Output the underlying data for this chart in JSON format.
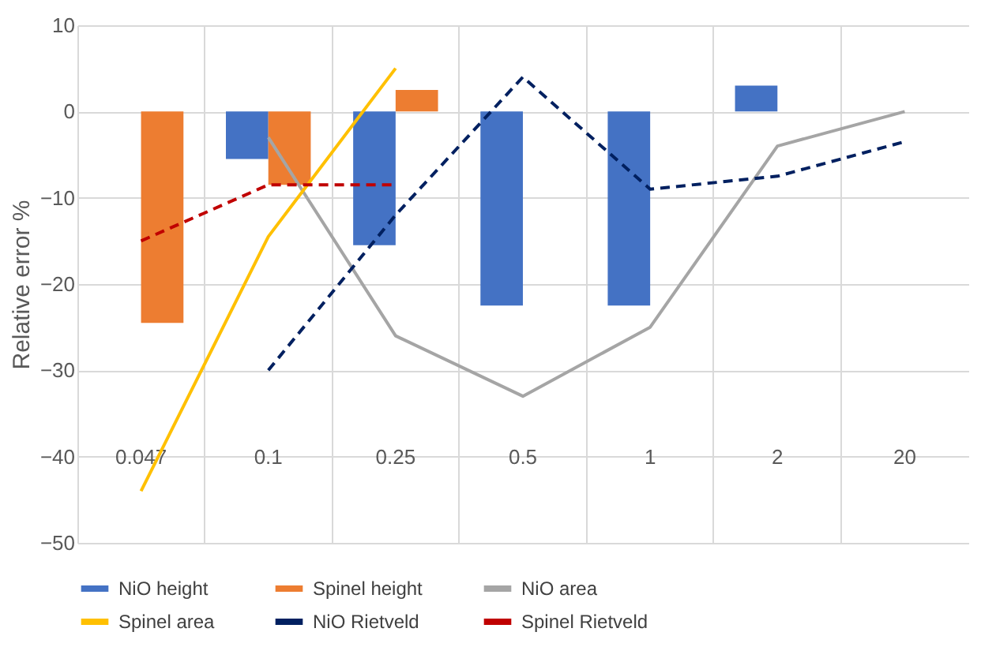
{
  "chart_data": {
    "type": "bar",
    "ylabel": "Relative error %",
    "categories": [
      "0.047",
      "0.1",
      "0.25",
      "0.5",
      "1",
      "2",
      "20"
    ],
    "series": [
      {
        "name": "NiO height",
        "type": "bar",
        "color": "#4472c4",
        "values": [
          null,
          -5.5,
          -15.5,
          -22.5,
          -22.5,
          3,
          null
        ]
      },
      {
        "name": "Spinel height",
        "type": "bar",
        "color": "#ed7d31",
        "values": [
          -24.5,
          -8.5,
          2.5,
          null,
          null,
          null,
          null
        ]
      },
      {
        "name": "NiO area",
        "type": "line",
        "color": "#a5a5a5",
        "line_style": "solid",
        "values": [
          null,
          -3,
          -26,
          -33,
          -25,
          -4,
          0
        ]
      },
      {
        "name": "Spinel area",
        "type": "line",
        "color": "#ffc000",
        "line_style": "solid",
        "values": [
          -44,
          -14.5,
          5,
          null,
          null,
          null,
          null
        ]
      },
      {
        "name": "NiO Rietveld",
        "type": "line",
        "color": "#002060",
        "line_style": "dashed",
        "values": [
          null,
          -30,
          -12,
          4,
          -9,
          -7.5,
          -3.5
        ]
      },
      {
        "name": "Spinel Rietveld",
        "type": "line",
        "color": "#c00000",
        "line_style": "dashed",
        "values": [
          -15,
          -8.5,
          -8.5,
          null,
          null,
          null,
          null
        ]
      }
    ],
    "ylim": [
      -50,
      10
    ],
    "yticks": [
      -50,
      -40,
      -30,
      -20,
      -10,
      0,
      10
    ],
    "grid": true,
    "legend": "bottom"
  }
}
